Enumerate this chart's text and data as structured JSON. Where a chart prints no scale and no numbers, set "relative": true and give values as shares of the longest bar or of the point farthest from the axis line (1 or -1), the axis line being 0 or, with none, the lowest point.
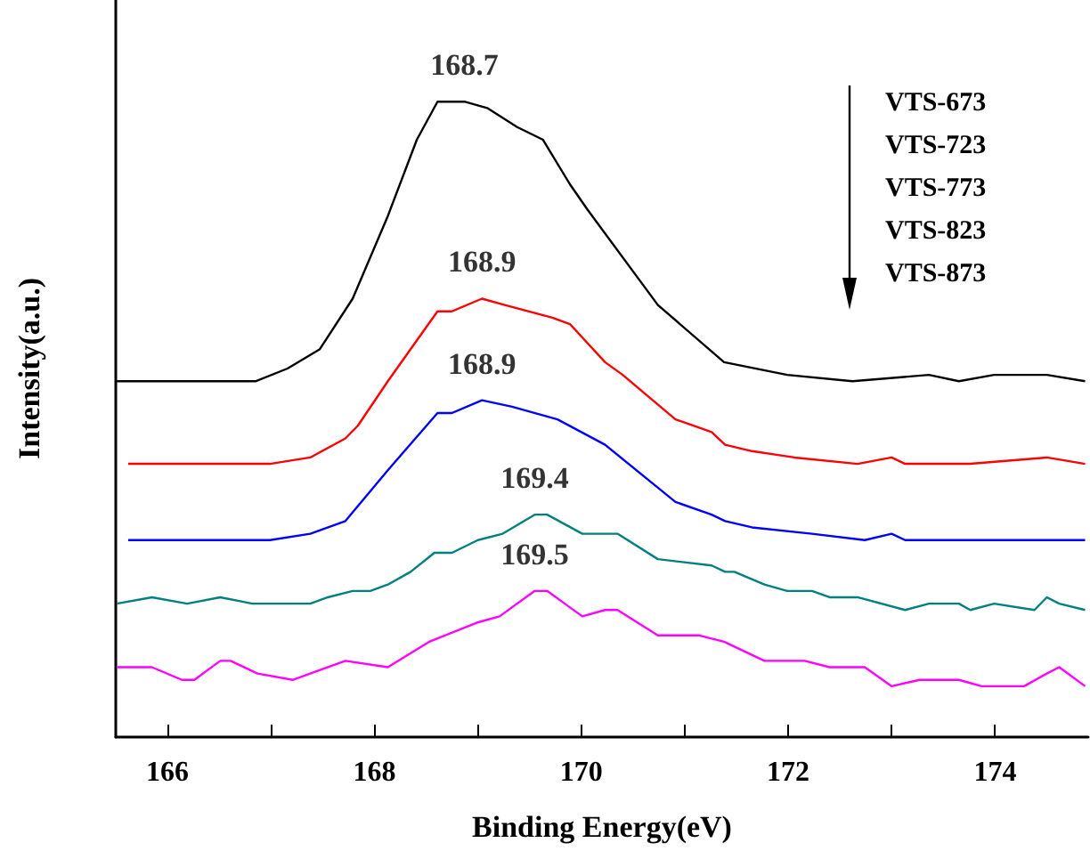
{
  "chart_data": {
    "type": "line",
    "xlabel": "Binding Energy(eV)",
    "ylabel": "Intensity(a.u.)",
    "relative": true,
    "xlim": [
      165.5,
      174.9
    ],
    "xticks": [
      166,
      {
        "value": 167,
        "label": null
      },
      168,
      {
        "value": 169,
        "label": null
      },
      170,
      {
        "value": 171,
        "label": null
      },
      172,
      {
        "value": 173,
        "label": null
      },
      174
    ],
    "grid": false,
    "marker": "none",
    "line_style": "solid",
    "annotations": [
      {
        "text": "168.7",
        "x": 168.87,
        "y": 1.0
      },
      {
        "text": "168.9",
        "x": 169.04,
        "y": 0.69
      },
      {
        "text": "168.9",
        "x": 169.04,
        "y": 0.53
      },
      {
        "text": "169.4",
        "x": 169.55,
        "y": 0.35
      },
      {
        "text": "169.5",
        "x": 169.55,
        "y": 0.23
      },
      "VTS-673",
      "VTS-723",
      "VTS-773",
      "VTS-823",
      "VTS-873"
    ],
    "series": [
      {
        "color": "#000000",
        "x": [
          165.51,
          166.48,
          166.85,
          167.16,
          167.47,
          167.79,
          168.13,
          168.41,
          168.61,
          168.87,
          169.09,
          169.38,
          169.63,
          169.89,
          170.06,
          170.74,
          171.38,
          171.99,
          172.62,
          173.36,
          173.65,
          173.99,
          174.5,
          174.87
        ],
        "values": [
          0.56,
          0.56,
          0.56,
          0.58,
          0.61,
          0.69,
          0.82,
          0.94,
          1.0,
          1.0,
          0.99,
          0.96,
          0.94,
          0.87,
          0.83,
          0.68,
          0.59,
          0.57,
          0.56,
          0.57,
          0.56,
          0.57,
          0.57,
          0.56
        ]
      },
      {
        "color": "#ff0000",
        "x": [
          165.62,
          166.02,
          166.48,
          166.99,
          167.38,
          167.72,
          167.84,
          168.13,
          168.61,
          168.75,
          169.04,
          169.26,
          169.72,
          169.89,
          170.23,
          170.4,
          170.91,
          171.26,
          171.39,
          171.65,
          172.06,
          172.67,
          173.0,
          173.13,
          173.76,
          174.5,
          174.87
        ],
        "values": [
          0.43,
          0.43,
          0.43,
          0.43,
          0.44,
          0.47,
          0.49,
          0.56,
          0.67,
          0.67,
          0.69,
          0.68,
          0.66,
          0.65,
          0.59,
          0.57,
          0.5,
          0.48,
          0.46,
          0.45,
          0.44,
          0.43,
          0.44,
          0.43,
          0.43,
          0.44,
          0.43
        ]
      },
      {
        "color": "#0000ff",
        "x": [
          165.62,
          166.02,
          166.6,
          166.99,
          167.38,
          167.72,
          168.13,
          168.61,
          168.75,
          169.04,
          169.33,
          169.77,
          170.23,
          170.91,
          171.26,
          171.39,
          171.65,
          172.23,
          172.74,
          173.0,
          173.13,
          173.76,
          174.38,
          174.87
        ],
        "values": [
          0.31,
          0.31,
          0.31,
          0.31,
          0.32,
          0.34,
          0.42,
          0.51,
          0.51,
          0.53,
          0.52,
          0.5,
          0.46,
          0.37,
          0.35,
          0.34,
          0.33,
          0.32,
          0.31,
          0.32,
          0.31,
          0.31,
          0.31,
          0.31
        ]
      },
      {
        "color": "#008080",
        "x": [
          165.51,
          165.85,
          166.19,
          166.51,
          166.82,
          167.21,
          167.38,
          167.55,
          167.79,
          167.96,
          168.13,
          168.35,
          168.58,
          168.75,
          169.0,
          169.24,
          169.55,
          169.67,
          170.01,
          170.23,
          170.35,
          170.74,
          171.26,
          171.39,
          171.48,
          171.77,
          171.99,
          172.23,
          172.4,
          172.67,
          173.13,
          173.36,
          173.65,
          173.76,
          173.99,
          174.38,
          174.5,
          174.62,
          174.87
        ],
        "values": [
          0.21,
          0.22,
          0.21,
          0.22,
          0.21,
          0.21,
          0.21,
          0.22,
          0.23,
          0.23,
          0.24,
          0.26,
          0.29,
          0.29,
          0.31,
          0.32,
          0.35,
          0.35,
          0.32,
          0.32,
          0.32,
          0.28,
          0.27,
          0.26,
          0.26,
          0.24,
          0.23,
          0.23,
          0.22,
          0.22,
          0.2,
          0.21,
          0.21,
          0.2,
          0.21,
          0.2,
          0.22,
          0.21,
          0.2
        ]
      },
      {
        "color": "#ff00ff",
        "x": [
          165.51,
          165.85,
          166.14,
          166.26,
          166.51,
          166.61,
          166.87,
          167.21,
          167.38,
          167.72,
          168.13,
          168.53,
          168.99,
          169.21,
          169.55,
          169.67,
          169.84,
          170.01,
          170.23,
          170.35,
          170.74,
          171.14,
          171.38,
          171.77,
          172.16,
          172.4,
          172.62,
          172.74,
          173.0,
          173.27,
          173.65,
          173.87,
          174.28,
          174.5,
          174.62,
          174.87
        ],
        "values": [
          0.11,
          0.11,
          0.09,
          0.09,
          0.12,
          0.12,
          0.1,
          0.09,
          0.1,
          0.12,
          0.11,
          0.15,
          0.18,
          0.19,
          0.23,
          0.23,
          0.21,
          0.19,
          0.2,
          0.2,
          0.16,
          0.16,
          0.15,
          0.12,
          0.12,
          0.11,
          0.11,
          0.11,
          0.08,
          0.09,
          0.09,
          0.08,
          0.08,
          0.1,
          0.11,
          0.08
        ]
      }
    ]
  }
}
